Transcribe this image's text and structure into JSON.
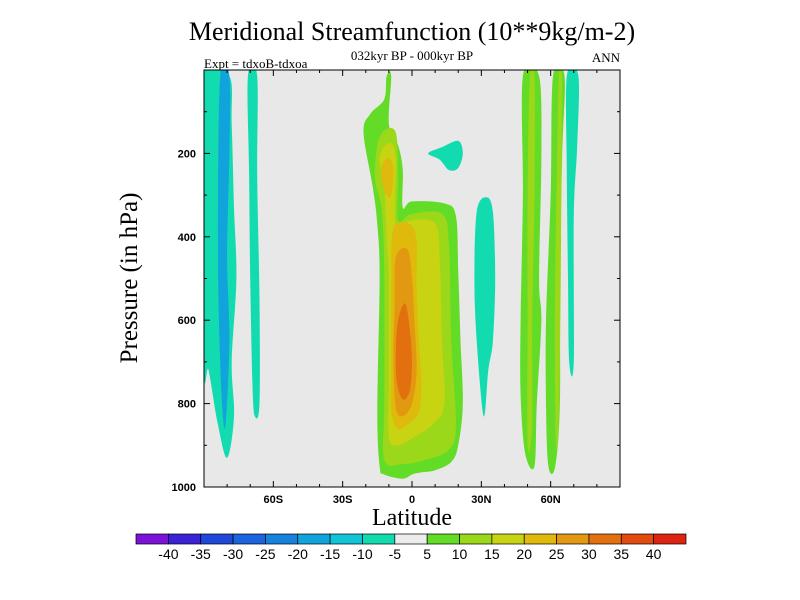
{
  "chart_data": {
    "type": "contour",
    "title": "Meridional Streamfunction (10**9kg/m-2)",
    "subtitle": "032kyr BP - 000kyr BP",
    "left_annotation": "Expt = tdxoB-tdxoa",
    "right_annotation": "ANN",
    "xlabel": "Latitude",
    "ylabel": "Pressure (in hPa)",
    "xlim": [
      -90,
      90
    ],
    "ylim": [
      1000,
      0
    ],
    "x_ticks": [
      -60,
      -30,
      0,
      30,
      60
    ],
    "x_tick_labels": [
      "60S",
      "30S",
      "0",
      "30N",
      "60N"
    ],
    "y_ticks": [
      200,
      400,
      600,
      800,
      1000
    ],
    "y_tick_labels": [
      "200",
      "400",
      "600",
      "800",
      "1000"
    ],
    "colorbar": {
      "labels": [
        "-40",
        "-35",
        "-30",
        "-25",
        "-20",
        "-15",
        "-10",
        "-5",
        "5",
        "10",
        "15",
        "20",
        "25",
        "30",
        "35",
        "40"
      ],
      "colors": [
        "#7a12d8",
        "#3b22d6",
        "#1f47d8",
        "#1c63de",
        "#1782dc",
        "#11a3dc",
        "#0fc4d6",
        "#13dbb0",
        "#ececec",
        "#62dc26",
        "#9bd81a",
        "#c8d312",
        "#e0b90d",
        "#e29810",
        "#e2700f",
        "#e24a10",
        "#dd2410"
      ]
    },
    "background_color": "#e8e8e8",
    "contours": [
      {
        "level": "-10",
        "color": "#13dbb0",
        "points": [
          [
            -90,
            15
          ],
          [
            -79,
            15
          ],
          [
            -78,
            130
          ],
          [
            -77,
            330
          ],
          [
            -76,
            500
          ],
          [
            -78,
            700
          ],
          [
            -77,
            830
          ],
          [
            -80,
            930
          ],
          [
            -84,
            850
          ],
          [
            -88,
            720
          ],
          [
            -90,
            700
          ]
        ]
      },
      {
        "level": "-10",
        "color": "#13dbb0",
        "points": [
          [
            -71,
            15
          ],
          [
            -67,
            15
          ],
          [
            -67,
            250
          ],
          [
            -66,
            550
          ],
          [
            -66,
            800
          ],
          [
            -68,
            830
          ],
          [
            -69,
            760
          ],
          [
            -70,
            500
          ],
          [
            -70.5,
            250
          ]
        ]
      },
      {
        "level": "-15",
        "color": "#11a3dc",
        "points": [
          [
            -83,
            15
          ],
          [
            -79,
            15
          ],
          [
            -79,
            200
          ],
          [
            -80,
            450
          ],
          [
            -79,
            650
          ],
          [
            -81,
            860
          ],
          [
            -83,
            700
          ],
          [
            -84,
            400
          ]
        ]
      },
      {
        "level": "-10",
        "color": "#13dbb0",
        "points": [
          [
            -86,
            150
          ],
          [
            -84,
            150
          ],
          [
            -84.5,
            350
          ],
          [
            -86,
            450
          ],
          [
            -87.5,
            300
          ]
        ]
      },
      {
        "level": "-10",
        "color": "#13dbb0",
        "points": [
          [
            7,
            200
          ],
          [
            13,
            185
          ],
          [
            20,
            170
          ],
          [
            22,
            200
          ],
          [
            20,
            235
          ],
          [
            16,
            240
          ],
          [
            12,
            215
          ]
        ]
      },
      {
        "level": "-10",
        "color": "#13dbb0",
        "points": [
          [
            28,
            340
          ],
          [
            32,
            305
          ],
          [
            35,
            340
          ],
          [
            36,
            500
          ],
          [
            35,
            650
          ],
          [
            33,
            720
          ],
          [
            31,
            830
          ],
          [
            28,
            650
          ],
          [
            27,
            500
          ]
        ]
      },
      {
        "level": "-10",
        "color": "#13dbb0",
        "points": [
          [
            67,
            15
          ],
          [
            72,
            15
          ],
          [
            71.5,
            180
          ],
          [
            70,
            350
          ],
          [
            70,
            700
          ],
          [
            68,
            700
          ],
          [
            67.5,
            500
          ],
          [
            67,
            250
          ]
        ]
      },
      {
        "level": "5",
        "color": "#62dc26",
        "points": [
          [
            -12,
            70
          ],
          [
            -11,
            15
          ],
          [
            -9,
            15
          ],
          [
            -10,
            130
          ],
          [
            -6,
            180
          ],
          [
            -4,
            240
          ],
          [
            -4,
            330
          ],
          [
            0,
            315
          ],
          [
            14,
            320
          ],
          [
            19,
            350
          ],
          [
            20,
            480
          ],
          [
            21,
            650
          ],
          [
            22,
            800
          ],
          [
            20,
            900
          ],
          [
            17,
            940
          ],
          [
            10,
            960
          ],
          [
            4,
            965
          ],
          [
            0,
            970
          ],
          [
            -4,
            980
          ],
          [
            -12,
            970
          ],
          [
            -14,
            950
          ],
          [
            -15,
            820
          ],
          [
            -14,
            500
          ],
          [
            -15,
            370
          ],
          [
            -17,
            280
          ],
          [
            -21,
            150
          ],
          [
            -18,
            105
          ]
        ]
      },
      {
        "level": "5",
        "color": "#62dc26",
        "points": [
          [
            48,
            15
          ],
          [
            55,
            15
          ],
          [
            56,
            200
          ],
          [
            55,
            500
          ],
          [
            56,
            600
          ],
          [
            54,
            800
          ],
          [
            53,
            950
          ],
          [
            49,
            920
          ],
          [
            47,
            780
          ],
          [
            47,
            600
          ],
          [
            48,
            300
          ]
        ]
      },
      {
        "level": "5",
        "color": "#62dc26",
        "points": [
          [
            61,
            15
          ],
          [
            66,
            15
          ],
          [
            65,
            200
          ],
          [
            64,
            500
          ],
          [
            64,
            800
          ],
          [
            62,
            950
          ],
          [
            59,
            950
          ],
          [
            58,
            800
          ],
          [
            58,
            600
          ],
          [
            60,
            300
          ]
        ]
      },
      {
        "level": "10",
        "color": "#9bd81a",
        "points": [
          [
            -15,
            180
          ],
          [
            -12,
            145
          ],
          [
            -7,
            150
          ],
          [
            -6,
            250
          ],
          [
            -6,
            360
          ],
          [
            0,
            345
          ],
          [
            13,
            345
          ],
          [
            16,
            420
          ],
          [
            17,
            650
          ],
          [
            19,
            850
          ],
          [
            16,
            910
          ],
          [
            6,
            935
          ],
          [
            -4,
            945
          ],
          [
            -12,
            935
          ],
          [
            -12,
            800
          ],
          [
            -12,
            500
          ],
          [
            -13,
            340
          ],
          [
            -16,
            260
          ]
        ]
      },
      {
        "level": "10",
        "color": "#9bd81a",
        "points": [
          [
            51,
            15
          ],
          [
            53,
            15
          ],
          [
            53,
            300
          ],
          [
            52,
            600
          ],
          [
            52,
            850
          ],
          [
            50,
            900
          ],
          [
            50,
            600
          ],
          [
            50,
            300
          ]
        ]
      },
      {
        "level": "10",
        "color": "#9bd81a",
        "points": [
          [
            63.5,
            15
          ],
          [
            64.8,
            15
          ],
          [
            64.5,
            400
          ],
          [
            63.7,
            800
          ],
          [
            62.3,
            900
          ],
          [
            61.8,
            600
          ],
          [
            62.5,
            300
          ]
        ]
      },
      {
        "level": "15",
        "color": "#c8d312",
        "points": [
          [
            -14,
            210
          ],
          [
            -10,
            175
          ],
          [
            -7,
            210
          ],
          [
            -7,
            370
          ],
          [
            0,
            360
          ],
          [
            10,
            368
          ],
          [
            12,
            450
          ],
          [
            13,
            650
          ],
          [
            14,
            800
          ],
          [
            9,
            850
          ],
          [
            1,
            880
          ],
          [
            -6,
            900
          ],
          [
            -10,
            880
          ],
          [
            -10,
            750
          ],
          [
            -10,
            500
          ],
          [
            -11,
            400
          ],
          [
            -12,
            280
          ]
        ]
      },
      {
        "level": "20",
        "color": "#e0b90d",
        "points": [
          [
            -13,
            230
          ],
          [
            -10,
            210
          ],
          [
            -8,
            240
          ],
          [
            -9,
            300
          ],
          [
            -11,
            300
          ],
          [
            -13,
            270
          ]
        ]
      },
      {
        "level": "20",
        "color": "#e0b90d",
        "points": [
          [
            -8,
            380
          ],
          [
            -1,
            370
          ],
          [
            2,
            410
          ],
          [
            2,
            520
          ],
          [
            3,
            650
          ],
          [
            4,
            750
          ],
          [
            3,
            820
          ],
          [
            -2,
            850
          ],
          [
            -6,
            860
          ],
          [
            -9,
            820
          ],
          [
            -9,
            700
          ],
          [
            -9,
            500
          ]
        ]
      },
      {
        "level": "25",
        "color": "#e29810",
        "points": [
          [
            -7,
            450
          ],
          [
            -2,
            430
          ],
          [
            0,
            500
          ],
          [
            1,
            600
          ],
          [
            2,
            720
          ],
          [
            0,
            800
          ],
          [
            -4,
            830
          ],
          [
            -7,
            810
          ],
          [
            -8,
            700
          ],
          [
            -7.5,
            560
          ]
        ]
      },
      {
        "level": "30",
        "color": "#e2700f",
        "points": [
          [
            -6,
            600
          ],
          [
            -3,
            560
          ],
          [
            -1,
            620
          ],
          [
            0,
            700
          ],
          [
            -1,
            770
          ],
          [
            -4,
            790
          ],
          [
            -6.5,
            750
          ],
          [
            -7,
            680
          ]
        ]
      }
    ]
  }
}
